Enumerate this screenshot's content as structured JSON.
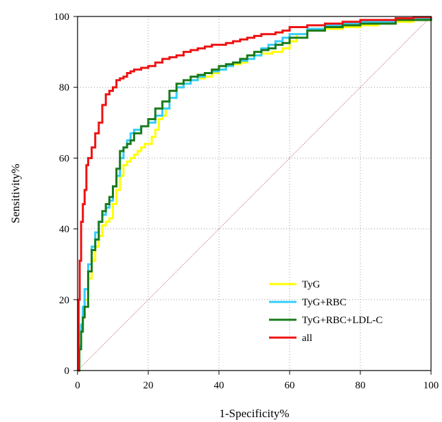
{
  "chart_data": {
    "type": "line",
    "xlabel": "1-Specificity%",
    "ylabel": "Sensitivity%",
    "xlim": [
      0,
      100
    ],
    "ylim": [
      0,
      100
    ],
    "x_ticks": [
      0,
      20,
      40,
      60,
      80,
      100
    ],
    "y_ticks": [
      0,
      20,
      40,
      60,
      80,
      100
    ],
    "grid": true,
    "legend_position": "lower-right",
    "reference_line": {
      "x": [
        0,
        100
      ],
      "y": [
        0,
        100
      ],
      "color": "#b06060"
    },
    "series": [
      {
        "name": "TyG",
        "color": "#ffff00",
        "x": [
          0,
          0.5,
          1,
          1.5,
          2,
          3,
          4,
          5,
          6,
          7,
          8,
          9,
          10,
          11,
          12,
          13,
          14,
          15,
          16,
          17,
          18,
          19,
          20,
          21,
          22,
          23,
          24,
          25,
          26,
          28,
          30,
          32,
          34,
          36,
          38,
          40,
          42,
          44,
          46,
          48,
          50,
          52,
          55,
          58,
          60,
          62,
          65,
          70,
          75,
          80,
          85,
          90,
          95,
          100
        ],
        "y": [
          0,
          7,
          12,
          16,
          20,
          26,
          31,
          35,
          38,
          41,
          42,
          43,
          47,
          51,
          55,
          58,
          59,
          60,
          61,
          62,
          63,
          64,
          64,
          66,
          68,
          71,
          72,
          74,
          77,
          80,
          81,
          82,
          82.5,
          83,
          84,
          85,
          86,
          86.5,
          87,
          88,
          89,
          89.5,
          90,
          91,
          93,
          95,
          96,
          96.5,
          97,
          97.5,
          98,
          98.5,
          99,
          100
        ]
      },
      {
        "name": "TyG+RBC",
        "color": "#33ccff",
        "x": [
          0,
          0.5,
          1,
          1.5,
          2,
          3,
          4,
          5,
          6,
          7,
          8,
          9,
          10,
          11,
          12,
          13,
          14,
          15,
          16,
          18,
          20,
          22,
          24,
          26,
          28,
          30,
          32,
          34,
          36,
          38,
          40,
          42,
          44,
          46,
          48,
          50,
          52,
          54,
          56,
          58,
          60,
          65,
          70,
          75,
          80,
          90,
          100
        ],
        "y": [
          0,
          7,
          13,
          18,
          23,
          30,
          35,
          39,
          42,
          44,
          46,
          48,
          52,
          55,
          60,
          63,
          65,
          67,
          68,
          69,
          70,
          72,
          74,
          77,
          80,
          81,
          82,
          83,
          84,
          84.5,
          85,
          86,
          87,
          87.5,
          88,
          89,
          91,
          92,
          93,
          94,
          95,
          96.5,
          97.5,
          98,
          98.5,
          99.5,
          100
        ]
      },
      {
        "name": "TyG+RBC+LDL-C",
        "color": "#1a7a1a",
        "x": [
          0,
          0.5,
          1,
          1.5,
          2,
          3,
          4,
          5,
          6,
          7,
          8,
          9,
          10,
          11,
          12,
          13,
          14,
          15,
          16,
          18,
          20,
          22,
          24,
          26,
          28,
          30,
          32,
          34,
          36,
          38,
          40,
          42,
          44,
          46,
          48,
          50,
          52,
          54,
          56,
          58,
          60,
          65,
          70,
          75,
          80,
          90,
          100
        ],
        "y": [
          0,
          6,
          11,
          15,
          18,
          28,
          34,
          37,
          42,
          45,
          47,
          49,
          52,
          57,
          62,
          63,
          64,
          65,
          67,
          69,
          71,
          74,
          76,
          79,
          81,
          82,
          83,
          83.5,
          84,
          85,
          86,
          86.5,
          87,
          88,
          89,
          90,
          90.5,
          91,
          92,
          92.5,
          94,
          96,
          97,
          97.5,
          98,
          99,
          100
        ]
      },
      {
        "name": "all",
        "color": "#ee1111",
        "x": [
          0,
          0.3,
          0.6,
          1,
          1.5,
          2,
          2.5,
          3,
          4,
          5,
          6,
          7,
          8,
          9,
          10,
          11,
          12,
          13,
          14,
          15,
          16,
          18,
          20,
          22,
          24,
          26,
          28,
          30,
          32,
          34,
          36,
          38,
          40,
          42,
          44,
          46,
          48,
          50,
          52,
          54,
          56,
          58,
          60,
          65,
          70,
          75,
          80,
          85,
          90,
          95,
          100
        ],
        "y": [
          0,
          20,
          31,
          42,
          47,
          51,
          58,
          60,
          63,
          67,
          70,
          75,
          78,
          79,
          80,
          82,
          82.5,
          83,
          84,
          84.5,
          85,
          85.5,
          86,
          87,
          88,
          88.5,
          89,
          90,
          90.5,
          91,
          91.5,
          92,
          92,
          92.5,
          93,
          93.5,
          94,
          94.5,
          95,
          95,
          95.5,
          96,
          97,
          97.5,
          98,
          98.5,
          99,
          99,
          99.5,
          99.8,
          100
        ]
      }
    ]
  }
}
